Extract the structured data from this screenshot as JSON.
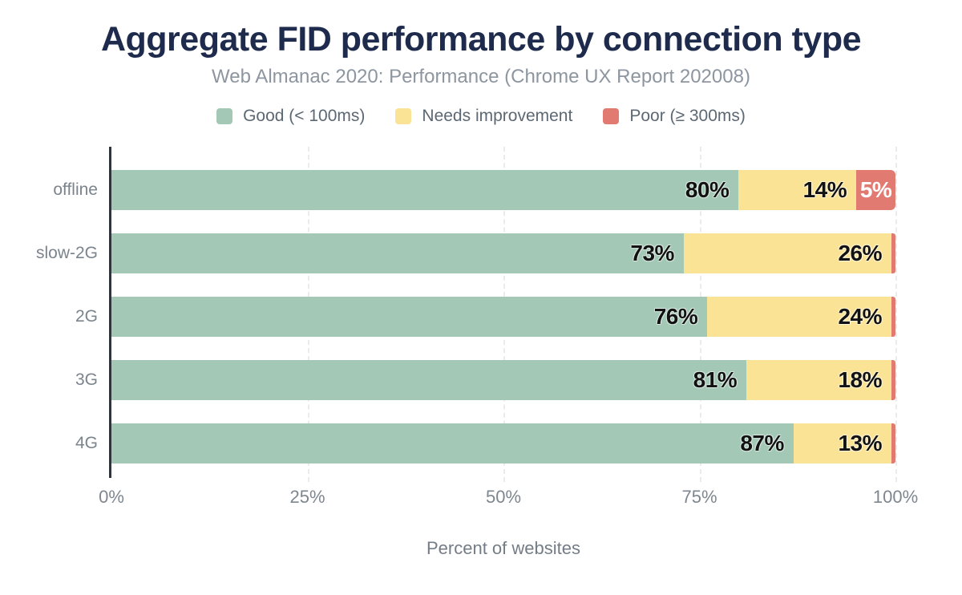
{
  "title": "Aggregate FID performance by connection type",
  "subtitle": "Web Almanac 2020: Performance (Chrome UX Report 202008)",
  "colors": {
    "good": "#a3c8b6",
    "needs_improvement": "#fbe396",
    "poor": "#e17b72",
    "title_text": "#1e2b4d",
    "axis_line": "#30353b",
    "muted_text": "#7e8790"
  },
  "legend": [
    {
      "label": "Good (< 100ms)",
      "color": "#a3c8b6"
    },
    {
      "label": "Needs improvement",
      "color": "#fbe396"
    },
    {
      "label": "Poor (≥ 300ms)",
      "color": "#e17b72"
    }
  ],
  "chart_data": {
    "type": "bar",
    "stacked": true,
    "orientation": "horizontal",
    "title": "Aggregate FID performance by connection type",
    "subtitle": "Web Almanac 2020: Performance (Chrome UX Report 202008)",
    "categories": [
      "offline",
      "slow-2G",
      "2G",
      "3G",
      "4G"
    ],
    "series": [
      {
        "name": "Good (< 100ms)",
        "color": "#a3c8b6",
        "values": [
          80,
          73,
          76,
          81,
          87
        ]
      },
      {
        "name": "Needs improvement",
        "color": "#fbe396",
        "values": [
          14,
          26,
          24,
          18,
          13
        ]
      },
      {
        "name": "Poor (≥ 300ms)",
        "color": "#e17b72",
        "values": [
          5,
          1,
          0,
          1,
          0
        ]
      }
    ],
    "bar_labels": [
      [
        "80%",
        "14%",
        "5%"
      ],
      [
        "73%",
        "26%",
        ""
      ],
      [
        "76%",
        "24%",
        ""
      ],
      [
        "81%",
        "18%",
        ""
      ],
      [
        "87%",
        "13%",
        ""
      ]
    ],
    "xlabel": "Percent of websites",
    "ylabel": "",
    "xlim": [
      0,
      100
    ],
    "x_ticks": [
      "0%",
      "25%",
      "50%",
      "75%",
      "100%"
    ],
    "x_tick_positions": [
      0,
      25,
      50,
      75,
      100
    ],
    "gridline_positions": [
      25,
      50,
      75,
      100
    ],
    "grid": "vertical-dashed",
    "legend_position": "top"
  }
}
